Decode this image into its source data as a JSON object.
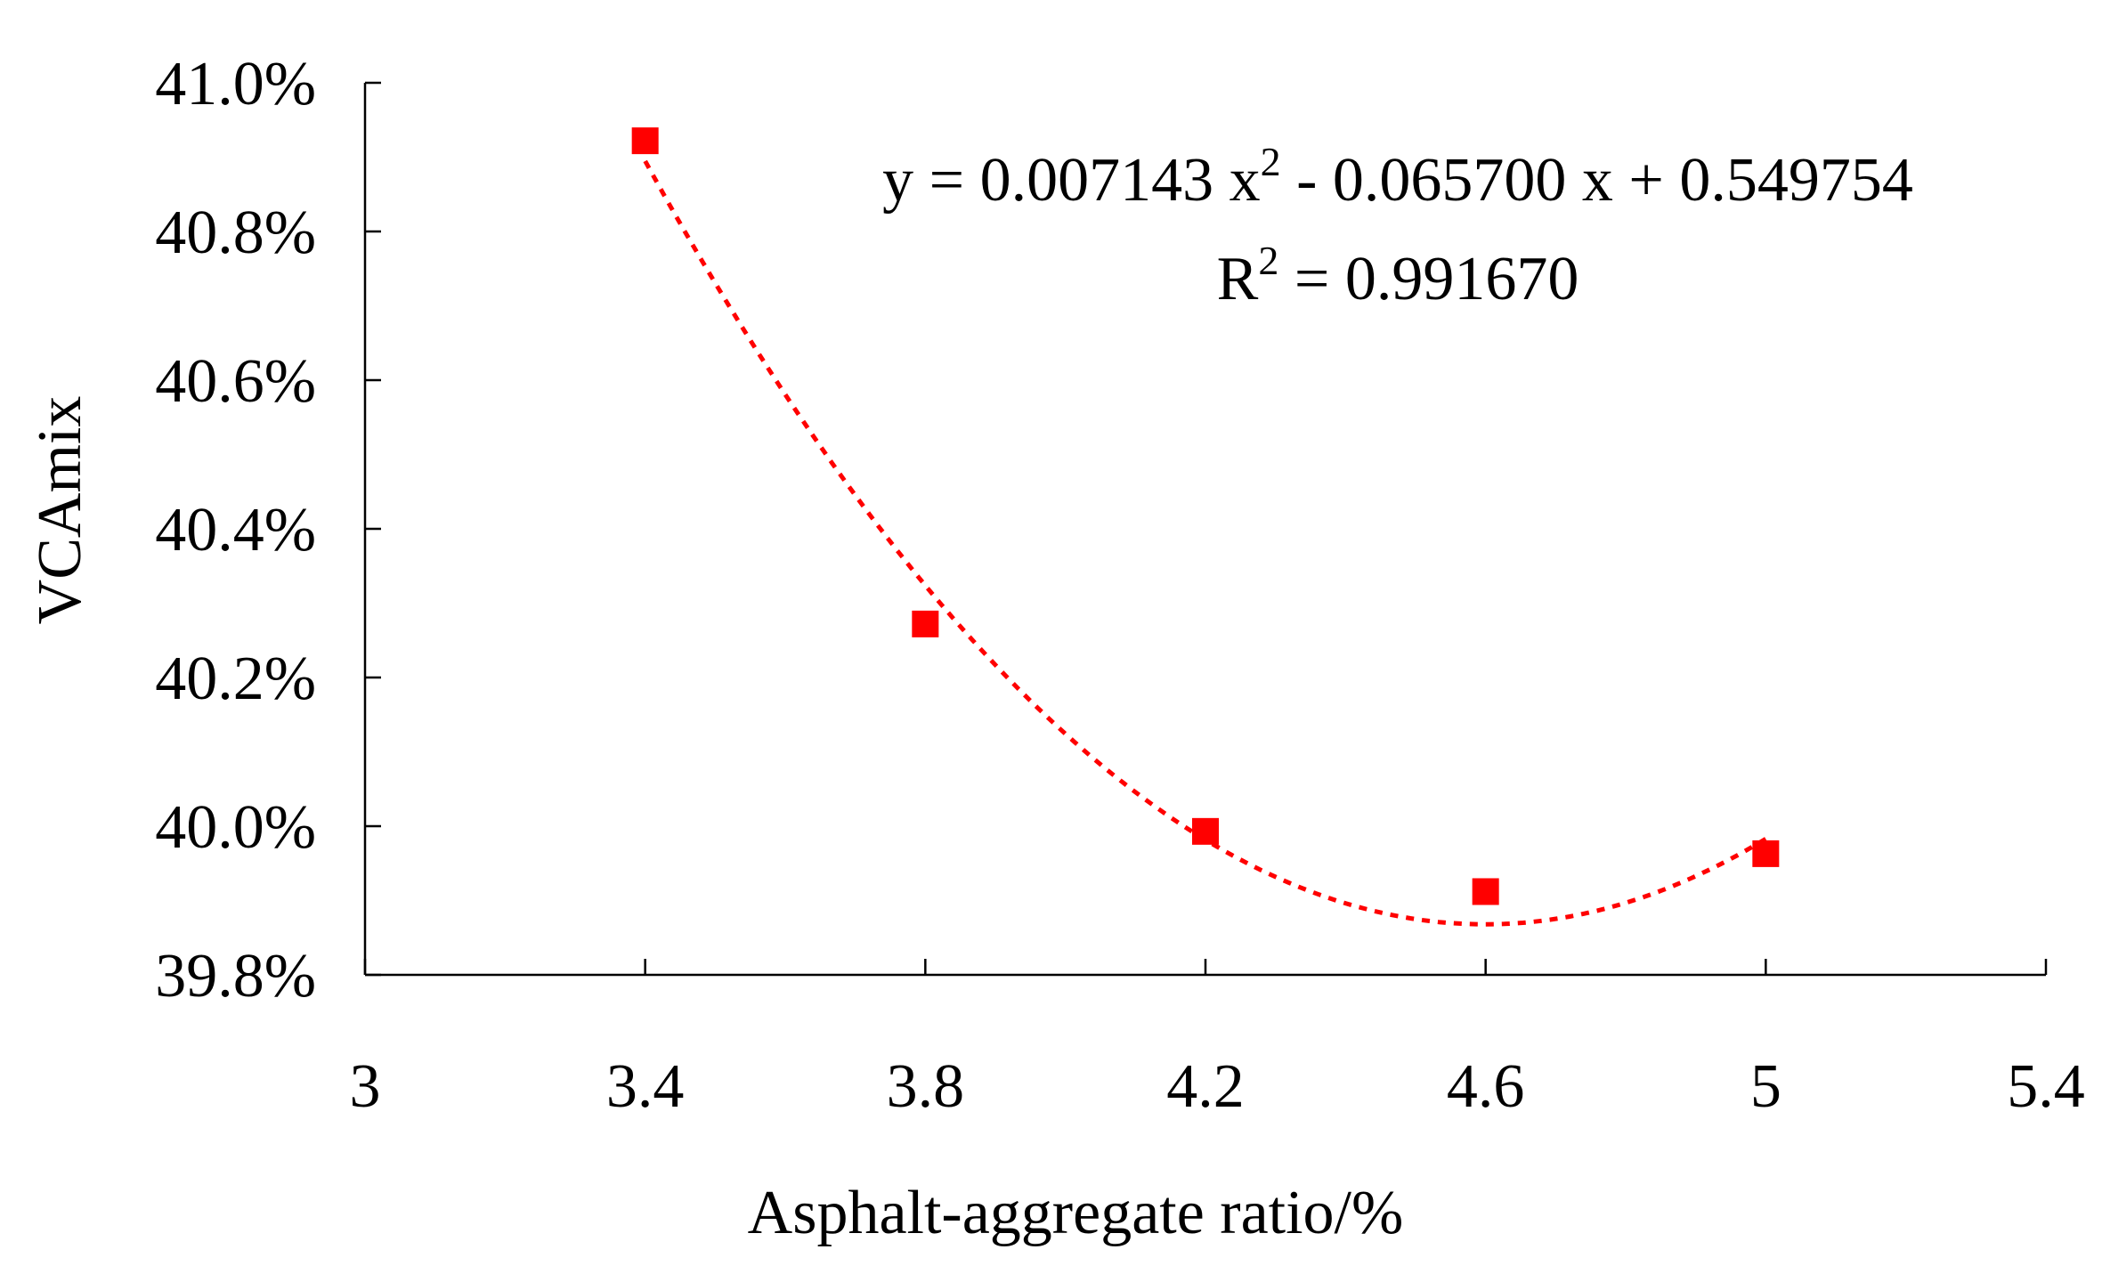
{
  "chart_data": {
    "type": "scatter",
    "title": "",
    "xlabel": "Asphalt-aggregate ratio/%",
    "ylabel": "VCAmix",
    "xlim": [
      3,
      5.4
    ],
    "ylim": [
      0.398,
      0.41
    ],
    "x_ticks": [
      3,
      3.4,
      3.8,
      4.2,
      4.6,
      5,
      5.4
    ],
    "x_tick_labels": [
      "3",
      "3.4",
      "3.8",
      "4.2",
      "4.6",
      "5",
      "5.4"
    ],
    "y_ticks": [
      0.398,
      0.4,
      0.402,
      0.404,
      0.406,
      0.408,
      0.41
    ],
    "y_tick_labels": [
      "39.8%",
      "40.0%",
      "40.2%",
      "40.4%",
      "40.6%",
      "40.8%",
      "41.0%"
    ],
    "grid": false,
    "legend": "none",
    "series": [
      {
        "x": [
          3.4,
          3.8,
          4.2,
          4.6,
          5.0
        ],
        "y": [
          0.40922,
          0.40272,
          0.39993,
          0.39912,
          0.39963
        ],
        "marker": "square",
        "color": "#ff0000"
      }
    ],
    "trendline": {
      "type": "polynomial",
      "order": 2,
      "coefficients": [
        0.007143,
        -0.0657,
        0.549754
      ],
      "x_range": [
        3.4,
        5.0
      ],
      "style": "dotted",
      "color": "#ff0000"
    },
    "annotations": {
      "equation_prefix": "y = 0.007143 x",
      "equation_exponent": "2",
      "equation_suffix": " - 0.065700 x + 0.549754",
      "r2_prefix": "R",
      "r2_exponent": "2",
      "r2_suffix": " = 0.991670"
    }
  }
}
